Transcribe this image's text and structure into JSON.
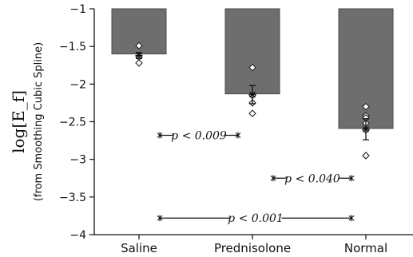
{
  "chart_data": {
    "type": "bar",
    "categories": [
      "Saline",
      "Prednisolone",
      "Normal"
    ],
    "ylabel": "log[E_f]",
    "ylabel_sub": "(from Smoothing Cubic Spline)",
    "ylim": [
      -4,
      -1
    ],
    "yticks": [
      -1,
      -1.5,
      -2,
      -2.5,
      -3,
      -3.5,
      -4
    ],
    "ytick_labels": [
      "−1",
      "−1.5",
      "−2",
      "−2.5",
      "−3",
      "−3.5",
      "−4"
    ],
    "bar_top": -1,
    "values": [
      -1.6,
      -2.13,
      -2.59
    ],
    "mean": [
      -1.62,
      -2.14,
      -2.6
    ],
    "error": [
      0.04,
      0.12,
      0.14
    ],
    "points": [
      [
        -1.49,
        -1.64,
        -1.72
      ],
      [
        -1.78,
        -2.15,
        -2.25,
        -2.39
      ],
      [
        -2.3,
        -2.42,
        -2.45,
        -2.52,
        -2.61,
        -2.95
      ]
    ],
    "bar_color": "#6e6e6e",
    "comparisons": [
      {
        "from": 0,
        "to": 1,
        "y": -2.68,
        "label": "p < 0.009"
      },
      {
        "from": 1,
        "to": 2,
        "y": -3.25,
        "label": "p < 0.040"
      },
      {
        "from": 0,
        "to": 2,
        "y": -3.78,
        "label": "p < 0.001"
      }
    ],
    "grid": false,
    "legend": "none"
  }
}
